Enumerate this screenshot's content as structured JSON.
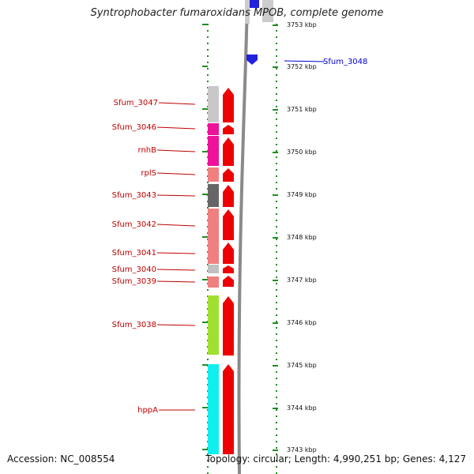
{
  "title": "Syntrophobacter fumaroxidans MPOB, complete genome",
  "accession_label": "Accession: NC_008554",
  "topology_label": "Topology: circular; Length: 4,990,251 bp; Genes: 4,127",
  "colors": {
    "label_red": "#c00000",
    "label_blue": "#0000cc",
    "arrow_red": "#ee0000",
    "dotted_green": "#228b22",
    "backbone_gray": "#8a8a8a"
  },
  "ticks": [
    {
      "label": "3753 kbp"
    },
    {
      "label": "3752 kbp"
    },
    {
      "label": "3751 kbp"
    },
    {
      "label": "3750 kbp"
    },
    {
      "label": "3749 kbp"
    },
    {
      "label": "3748 kbp"
    },
    {
      "label": "3747 kbp"
    },
    {
      "label": "3746 kbp"
    },
    {
      "label": "3745 kbp"
    },
    {
      "label": "3744 kbp"
    },
    {
      "label": "3743 kbp"
    }
  ],
  "genes": [
    {
      "name": "Sfum_3047",
      "color": "#c8c8c8"
    },
    {
      "name": "Sfum_3046",
      "color": "#ee1199"
    },
    {
      "name": "rnhB",
      "color": "#ee1199"
    },
    {
      "name": "rplS",
      "color": "#f08080"
    },
    {
      "name": "Sfum_3043",
      "color": "#666666"
    },
    {
      "name": "Sfum_3042",
      "color": "#f08080"
    },
    {
      "name": "Sfum_3041",
      "color": "#f08080"
    },
    {
      "name": "Sfum_3040",
      "color": "#c0c0c0"
    },
    {
      "name": "Sfum_3039",
      "color": "#f08080"
    },
    {
      "name": "Sfum_3038",
      "color": "#a0e030"
    },
    {
      "name": "hppA",
      "color": "#11eeee"
    }
  ],
  "other_strand_gene": {
    "name": "Sfum_3048",
    "color": "#2222dd"
  }
}
